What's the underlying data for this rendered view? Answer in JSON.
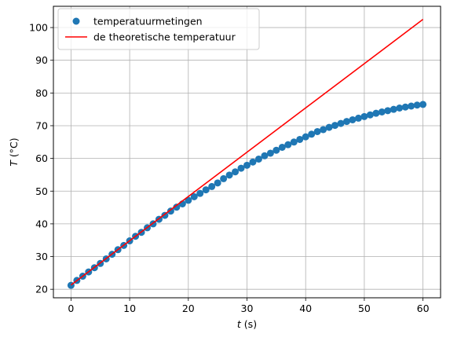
{
  "chart_data": {
    "type": "scatter",
    "x_range": [
      0,
      60
    ],
    "xlim": [
      -3,
      63
    ],
    "ylim": [
      17.4,
      106.5
    ],
    "x_ticks": [
      0,
      10,
      20,
      30,
      40,
      50,
      60
    ],
    "y_ticks": [
      20,
      30,
      40,
      50,
      60,
      70,
      80,
      90,
      100
    ],
    "x_tick_labels": [
      "0",
      "10",
      "20",
      "30",
      "40",
      "50",
      "60"
    ],
    "y_tick_labels": [
      "20",
      "30",
      "40",
      "50",
      "60",
      "70",
      "80",
      "90",
      "100"
    ],
    "xlabel_var": "t",
    "xlabel_unit": " (s)",
    "ylabel_var": "T",
    "ylabel_unit": " (°C)",
    "grid": true,
    "legend_position": "top-left",
    "series": [
      {
        "name": "temperatuurmetingen",
        "kind": "markers",
        "color": "#1f77b4",
        "x": [
          0,
          1,
          2,
          3,
          4,
          5,
          6,
          7,
          8,
          9,
          10,
          11,
          12,
          13,
          14,
          15,
          16,
          17,
          18,
          19,
          20,
          21,
          22,
          23,
          24,
          25,
          26,
          27,
          28,
          29,
          30,
          31,
          32,
          33,
          34,
          35,
          36,
          37,
          38,
          39,
          40,
          41,
          42,
          43,
          44,
          45,
          46,
          47,
          48,
          49,
          50,
          51,
          52,
          53,
          54,
          55,
          56,
          57,
          58,
          59,
          60
        ],
        "y": [
          21.2,
          22.7,
          24.0,
          25.3,
          26.6,
          27.9,
          29.3,
          30.7,
          32.1,
          33.4,
          34.8,
          36.2,
          37.4,
          38.8,
          40.0,
          41.4,
          42.6,
          43.9,
          45.1,
          46.1,
          47.2,
          48.3,
          49.3,
          50.4,
          51.4,
          52.5,
          53.8,
          54.9,
          55.9,
          57.0,
          57.9,
          58.9,
          59.8,
          60.8,
          61.6,
          62.5,
          63.4,
          64.2,
          65.0,
          65.8,
          66.6,
          67.4,
          68.2,
          68.8,
          69.5,
          70.1,
          70.7,
          71.3,
          71.8,
          72.3,
          72.8,
          73.3,
          73.8,
          74.2,
          74.6,
          75.0,
          75.4,
          75.7,
          76.0,
          76.3,
          76.5
        ]
      },
      {
        "name": "de theoretische temperatuur",
        "kind": "line",
        "color": "#ff0000",
        "x": [
          0,
          60
        ],
        "y": [
          21.3,
          102.5
        ]
      }
    ]
  }
}
